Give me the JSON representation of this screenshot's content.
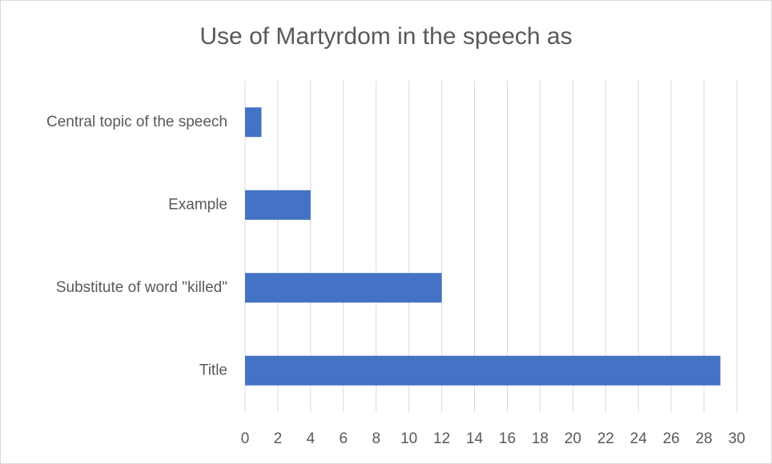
{
  "chart_data": {
    "type": "barh",
    "title": "Use of Martyrdom in the speech as",
    "categories": [
      "Central topic of the speech",
      "Example",
      "Substitute of word \"killed\"",
      "Title"
    ],
    "values": [
      1,
      4,
      12,
      29
    ],
    "color": "#4472c4",
    "xlim": [
      0,
      30
    ],
    "xticks": [
      0,
      2,
      4,
      6,
      8,
      10,
      12,
      14,
      16,
      18,
      20,
      22,
      24,
      26,
      28,
      30
    ],
    "grid": true
  }
}
